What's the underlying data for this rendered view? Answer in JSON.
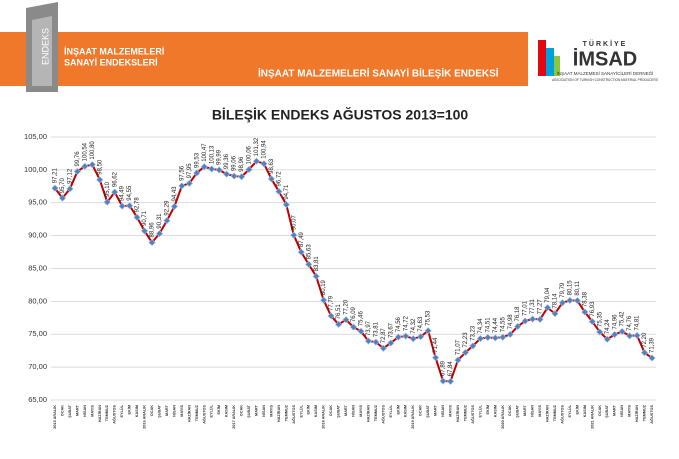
{
  "header": {
    "logo_text": "ENDEKS",
    "left_title": [
      "İNŞAAT MALZEMELERİ",
      "SANAYİ ENDEKSLERİ"
    ],
    "center_title": "İNŞAAT MALZEMELERİ SANAYİ BİLEŞİK ENDEKSİ",
    "brand_top": "TÜRKİYE",
    "brand": "İMSAD",
    "brand_sub": "İNŞAAT MALZEMESİ SANAYİCİLERİ DERNEĞİ",
    "brand_sub_en": "ASSOCIATION OF TURKISH CONSTRUCTION MATERIAL PRODUCERS"
  },
  "chart_data": {
    "type": "line",
    "title": "BİLEŞİK ENDEKS AĞUSTOS 2013=100",
    "categories": [
      "2015 ARALIK",
      "OCAK",
      "ŞUBAT",
      "MART",
      "NİSAN",
      "MAYIS",
      "HAZİRAN",
      "TEMMUZ",
      "AĞUSTOS",
      "EYLÜL",
      "EKİM",
      "KASIM",
      "2016 ARALIK",
      "OCAK",
      "ŞUBAT",
      "MART",
      "NİSAN",
      "MAYIS",
      "HAZİRAN",
      "TEMMUZ",
      "AĞUSTOS",
      "EYLÜL",
      "EKİM",
      "KASIM",
      "2017 ARALIK",
      "OCAK",
      "ŞUBAT",
      "MART",
      "NİSAN",
      "MAYIS",
      "HAZİRAN",
      "TEMMUZ",
      "AĞUSTOS",
      "EYLÜL",
      "EKİM",
      "KASIM",
      "2018 ARALIK",
      "OCAK",
      "ŞUBAT",
      "MART",
      "NİSAN",
      "MAYIS",
      "HAZİRAN",
      "TEMMUZ",
      "AĞUSTOS",
      "EYLÜL",
      "EKİM",
      "KASIM",
      "2019 ARALIK",
      "OCAK",
      "ŞUBAT",
      "MART",
      "NİSAN",
      "MAYIS",
      "HAZİRAN",
      "TEMMUZ",
      "AĞUSTOS",
      "EYLÜL",
      "EKİM",
      "KASIM",
      "2020 ARALIK",
      "OCAK",
      "ŞUBAT",
      "MART",
      "NİSAN",
      "MAYIS",
      "HAZİRAN",
      "TEMMUZ",
      "AĞUSTOS",
      "EYLÜL",
      "EKİM",
      "KASIM",
      "2021 ARALIK",
      "OCAK",
      "ŞUBAT",
      "MART",
      "NİSAN",
      "MAYIS",
      "HAZİRAN",
      "TEMMUZ",
      "AĞUSTOS"
    ],
    "values": [
      97.21,
      95.7,
      97.12,
      99.76,
      100.54,
      100.8,
      98.5,
      95.1,
      96.62,
      94.49,
      94.55,
      92.78,
      90.71,
      88.96,
      90.31,
      92.29,
      94.43,
      97.56,
      97.95,
      99.53,
      100.47,
      100.13,
      99.99,
      99.36,
      99.06,
      98.96,
      100.06,
      101.32,
      100.94,
      98.63,
      96.72,
      94.71,
      90.07,
      87.49,
      85.63,
      83.81,
      80.19,
      77.79,
      76.51,
      77.2,
      76.09,
      75.46,
      73.97,
      73.81,
      72.87,
      73.67,
      74.56,
      74.72,
      74.32,
      74.63,
      75.53,
      71.44,
      67.89,
      67.84,
      71.07,
      72.23,
      73.23,
      74.34,
      74.51,
      74.44,
      74.55,
      74.98,
      76.18,
      77.01,
      77.31,
      77.27,
      79.04,
      78.14,
      79.79,
      80.15,
      80.11,
      78.38,
      76.93,
      75.35,
      74.24,
      74.96,
      75.42,
      74.76,
      74.81,
      72.2,
      71.39
    ],
    "value_labels": [
      "97,21",
      "95,70",
      "97,12",
      "99,76",
      "100,54",
      "100,80",
      "98,50",
      "95,10",
      "96,62",
      "94,49",
      "94,55",
      "92,78",
      "90,71",
      "88,96",
      "90,31",
      "92,29",
      "94,43",
      "97,56",
      "97,95",
      "99,53",
      "100,47",
      "100,13",
      "99,99",
      "99,36",
      "99,06",
      "98,96",
      "100,06",
      "101,32",
      "100,94",
      "98,63",
      "96,72",
      "94,71",
      "90,07",
      "87,49",
      "85,63",
      "83,81",
      "80,19",
      "77,79",
      "76,51",
      "77,20",
      "76,09",
      "75,46",
      "73,97",
      "73,81",
      "72,87",
      "73,67",
      "74,56",
      "74,72",
      "74,32",
      "74,63",
      "75,53",
      "71,44",
      "67,89",
      "67,84",
      "71,07",
      "72,23",
      "73,23",
      "74,34",
      "74,51",
      "74,44",
      "74,55",
      "74,98",
      "76,18",
      "77,01",
      "77,31",
      "77,27",
      "79,04",
      "78,14",
      "79,79",
      "80,15",
      "80,11",
      "78,38",
      "76,93",
      "75,35",
      "74,24",
      "74,96",
      "75,42",
      "74,76",
      "74,81",
      "72,20",
      "71,39"
    ],
    "color": "#c00000",
    "marker_color": "#4f81bd",
    "ylim": [
      65,
      105
    ],
    "yticks": [
      {
        "value": 65,
        "label": "65,00"
      },
      {
        "value": 70,
        "label": "70,00"
      },
      {
        "value": 75,
        "label": "75,00"
      },
      {
        "value": 80,
        "label": "80,00"
      },
      {
        "value": 85,
        "label": "85,00"
      },
      {
        "value": 90,
        "label": "90,00"
      },
      {
        "value": 95,
        "label": "95,00"
      },
      {
        "value": 100,
        "label": "100,00"
      },
      {
        "value": 105,
        "label": "105,00"
      }
    ],
    "grid": true
  }
}
